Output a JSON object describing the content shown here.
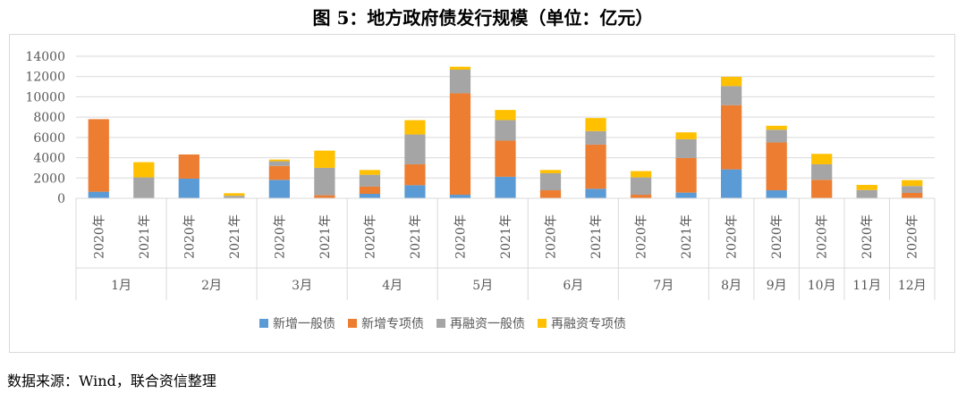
{
  "title": "图 5：地方政府债发行规模（单位：亿元）",
  "source": "数据来源：Wind，联合资信整理",
  "chart_data": {
    "type": "bar",
    "stacked": true,
    "title": "图 5：地方政府债发行规模（单位：亿元）",
    "ylim": [
      0,
      14000
    ],
    "yticks": [
      0,
      2000,
      4000,
      6000,
      8000,
      10000,
      12000,
      14000
    ],
    "grid": true,
    "legend_position": "bottom",
    "categories": [
      "2020年",
      "2021年",
      "2020年",
      "2021年",
      "2020年",
      "2021年",
      "2020年",
      "2021年",
      "2020年",
      "2021年",
      "2020年",
      "2021年",
      "2020年",
      "2021年",
      "2020年",
      "2020年",
      "2020年",
      "2020年",
      "2020年"
    ],
    "groups": [
      {
        "label": "1月",
        "count": 2
      },
      {
        "label": "2月",
        "count": 2
      },
      {
        "label": "3月",
        "count": 2
      },
      {
        "label": "4月",
        "count": 2
      },
      {
        "label": "5月",
        "count": 2
      },
      {
        "label": "6月",
        "count": 2
      },
      {
        "label": "7月",
        "count": 2
      },
      {
        "label": "8月",
        "count": 1
      },
      {
        "label": "9月",
        "count": 1
      },
      {
        "label": "10月",
        "count": 1
      },
      {
        "label": "11月",
        "count": 1
      },
      {
        "label": "12月",
        "count": 1
      }
    ],
    "series": [
      {
        "name": "新增一般债",
        "color": "#5b9bd5",
        "values": [
          650,
          0,
          1940,
          0,
          1820,
          0,
          440,
          1290,
          350,
          2120,
          0,
          940,
          0,
          560,
          2850,
          790,
          0,
          0,
          0
        ]
      },
      {
        "name": "新增专项债",
        "color": "#ed7d31",
        "values": [
          7150,
          0,
          2380,
          0,
          1360,
          300,
          710,
          2060,
          10000,
          3560,
          790,
          4350,
          350,
          3410,
          6330,
          4710,
          1820,
          0,
          530
        ]
      },
      {
        "name": "再融资一般债",
        "color": "#a5a5a5",
        "values": [
          0,
          2060,
          0,
          250,
          470,
          2700,
          1170,
          2940,
          2330,
          2030,
          1680,
          1330,
          1710,
          1850,
          1880,
          1260,
          1530,
          820,
          680
        ]
      },
      {
        "name": "再融资专项债",
        "color": "#ffc000",
        "values": [
          0,
          1500,
          0,
          250,
          170,
          1700,
          470,
          1410,
          290,
          1000,
          320,
          1290,
          620,
          680,
          910,
          390,
          1030,
          500,
          580
        ]
      }
    ]
  }
}
